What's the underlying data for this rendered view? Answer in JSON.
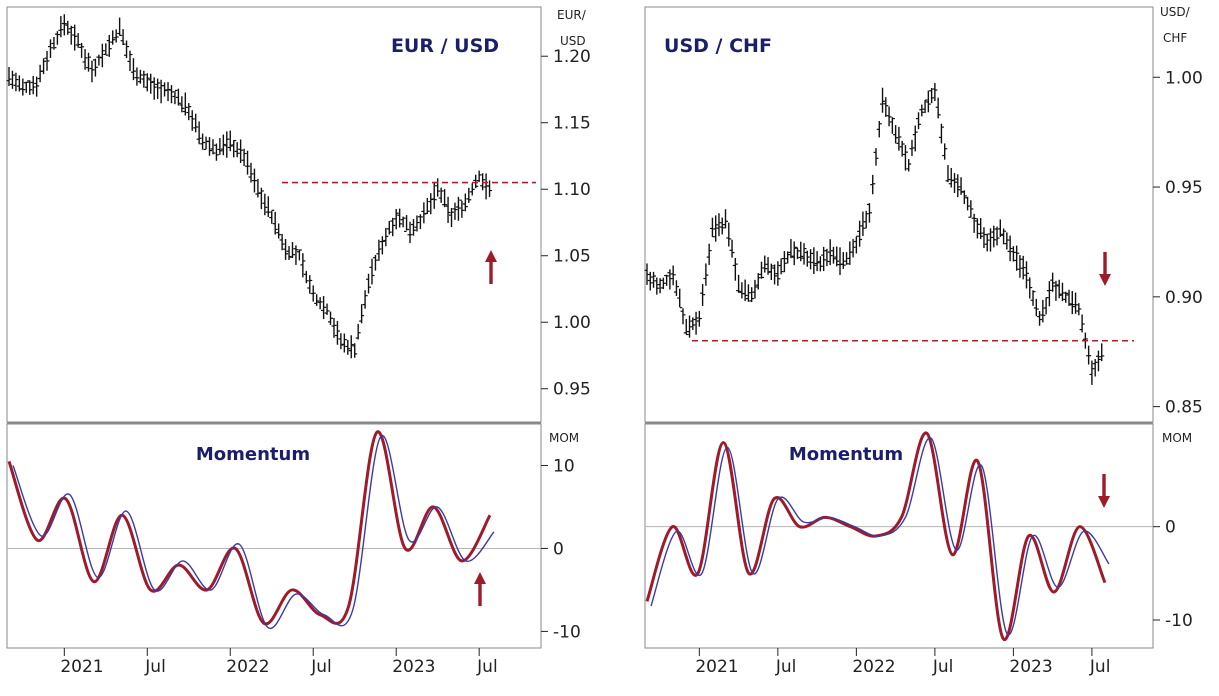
{
  "colors": {
    "price": "#111111",
    "momentum_fast": "#9e1b2a",
    "momentum_slow": "#3a3aa8",
    "level": "#a8202f",
    "arrow": "#9e1b2a",
    "frame": "#8a8a8a",
    "zero": "#b5b5b5",
    "title": "#1b1f6b"
  },
  "chart_data": [
    {
      "type": "line",
      "title": "EUR / USD",
      "unit_label": [
        "EUR/",
        "USD"
      ],
      "y_ticks": [
        "1.20",
        "1.15",
        "1.10",
        "1.05",
        "1.00",
        "0.95"
      ],
      "y_tick_values": [
        1.2,
        1.15,
        1.1,
        1.05,
        1.0,
        0.95
      ],
      "ylim": [
        0.925,
        1.237
      ],
      "series": [
        {
          "x": [
            "2020-09",
            "2020-10",
            "2020-11",
            "2020-12",
            "2021-01",
            "2021-02",
            "2021-03",
            "2021-04",
            "2021-05",
            "2021-06",
            "2021-07",
            "2021-08",
            "2021-09",
            "2021-10",
            "2021-11",
            "2021-12",
            "2022-01",
            "2022-02",
            "2022-03",
            "2022-04",
            "2022-05",
            "2022-06",
            "2022-07",
            "2022-08",
            "2022-09",
            "2022-10",
            "2022-11",
            "2022-12",
            "2023-01",
            "2023-02",
            "2023-03",
            "2023-04",
            "2023-05",
            "2023-06",
            "2023-07",
            "2023-08"
          ],
          "values": [
            1.185,
            1.175,
            1.18,
            1.205,
            1.225,
            1.21,
            1.19,
            1.205,
            1.22,
            1.19,
            1.18,
            1.175,
            1.17,
            1.16,
            1.135,
            1.13,
            1.135,
            1.125,
            1.1,
            1.08,
            1.055,
            1.05,
            1.02,
            1.01,
            0.985,
            0.98,
            1.03,
            1.06,
            1.08,
            1.07,
            1.08,
            1.1,
            1.08,
            1.09,
            1.11,
            1.095
          ]
        }
      ],
      "level": 1.105,
      "arrow": "up",
      "momentum": {
        "title": "Momentum",
        "unit_label": "MOM",
        "y_ticks": [
          "10",
          "0",
          "-10"
        ],
        "y_tick_values": [
          10,
          0,
          -10
        ],
        "ylim": [
          -12,
          15
        ],
        "series": [
          {
            "values": [
              10.5,
              1,
              6,
              -4,
              4,
              -5,
              -2,
              -5,
              0,
              -9,
              -5,
              -8,
              -7,
              14,
              0,
              5,
              -1.5,
              4
            ]
          },
          {
            "values": [
              10,
              1.5,
              6.5,
              -3.5,
              4.5,
              -5,
              -1.5,
              -5,
              0.5,
              -9.5,
              -5.5,
              -8,
              -7.5,
              13.5,
              1,
              5,
              -1.5,
              2
            ]
          }
        ]
      }
    },
    {
      "type": "line",
      "title": "USD / CHF",
      "unit_label": [
        "USD/",
        "CHF"
      ],
      "y_ticks": [
        "1.00",
        "0.95",
        "0.90",
        "0.85"
      ],
      "y_tick_values": [
        1.0,
        0.95,
        0.9,
        0.85
      ],
      "ylim": [
        0.843,
        1.032
      ],
      "series": [
        {
          "x": [
            "2020-09",
            "2020-10",
            "2020-11",
            "2020-12",
            "2021-01",
            "2021-02",
            "2021-03",
            "2021-04",
            "2021-05",
            "2021-06",
            "2021-07",
            "2021-08",
            "2021-09",
            "2021-10",
            "2021-11",
            "2021-12",
            "2022-01",
            "2022-02",
            "2022-03",
            "2022-04",
            "2022-05",
            "2022-06",
            "2022-07",
            "2022-08",
            "2022-09",
            "2022-10",
            "2022-11",
            "2022-12",
            "2023-01",
            "2023-02",
            "2023-03",
            "2023-04",
            "2023-05",
            "2023-06",
            "2023-07",
            "2023-08"
          ],
          "values": [
            0.91,
            0.905,
            0.91,
            0.885,
            0.89,
            0.93,
            0.935,
            0.905,
            0.9,
            0.915,
            0.91,
            0.92,
            0.92,
            0.915,
            0.92,
            0.915,
            0.925,
            0.94,
            0.99,
            0.975,
            0.96,
            0.985,
            0.995,
            0.955,
            0.95,
            0.935,
            0.925,
            0.93,
            0.92,
            0.91,
            0.89,
            0.905,
            0.9,
            0.895,
            0.865,
            0.878
          ]
        }
      ],
      "level": 0.88,
      "arrow": "down",
      "momentum": {
        "title": "Momentum",
        "unit_label": "MOM",
        "y_ticks": [
          "0",
          "-10"
        ],
        "y_tick_values": [
          0,
          -10
        ],
        "ylim": [
          -13,
          11
        ],
        "series": [
          {
            "values": [
              -8,
              0,
              -5,
              9,
              -5,
              3,
              0,
              1,
              0,
              -1,
              1,
              10,
              -3,
              7,
              -12,
              -1,
              -7,
              0,
              -6
            ]
          },
          {
            "values": [
              -8.5,
              -0.5,
              -5,
              8.5,
              -5,
              3,
              0.5,
              1,
              0,
              -1,
              1,
              9.5,
              -2.5,
              6.5,
              -11.5,
              -1,
              -6.5,
              -0.5,
              -4
            ]
          }
        ]
      }
    }
  ],
  "x_axis": {
    "ticks": [
      "2021",
      "Jul",
      "2022",
      "Jul",
      "2023",
      "Jul"
    ],
    "tick_dates": [
      "2021-01",
      "2021-07",
      "2022-01",
      "2022-07",
      "2023-01",
      "2023-07"
    ]
  }
}
